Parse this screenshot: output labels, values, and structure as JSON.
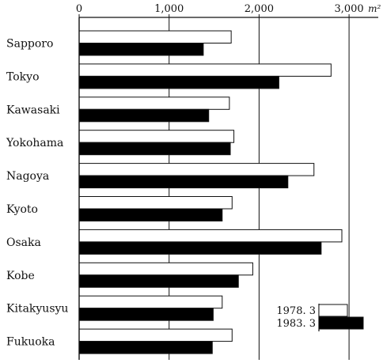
{
  "chart_data": {
    "type": "bar",
    "orientation": "horizontal",
    "unit": "m²",
    "xlim": [
      0,
      3000
    ],
    "xticks": [
      0,
      1000,
      2000,
      3000
    ],
    "xtick_labels": [
      "0",
      "1,000",
      "2,000",
      "3,000"
    ],
    "grid": "vertical lines at 1,000, 2,000, 3,000",
    "legend_position": "bottom-right",
    "categories": [
      "Sapporo",
      "Tokyo",
      "Kawasaki",
      "Yokohama",
      "Nagoya",
      "Kyoto",
      "Osaka",
      "Kobe",
      "Kitakyusyu",
      "Fukuoka"
    ],
    "series": [
      {
        "name": "1978. 3",
        "fill": "#ffffff",
        "values": [
          1690,
          2800,
          1670,
          1720,
          2610,
          1700,
          2920,
          1930,
          1590,
          1700
        ]
      },
      {
        "name": "1983. 3",
        "fill": "#000000",
        "values": [
          1380,
          2220,
          1440,
          1680,
          2320,
          1590,
          2690,
          1770,
          1490,
          1480
        ]
      }
    ]
  }
}
